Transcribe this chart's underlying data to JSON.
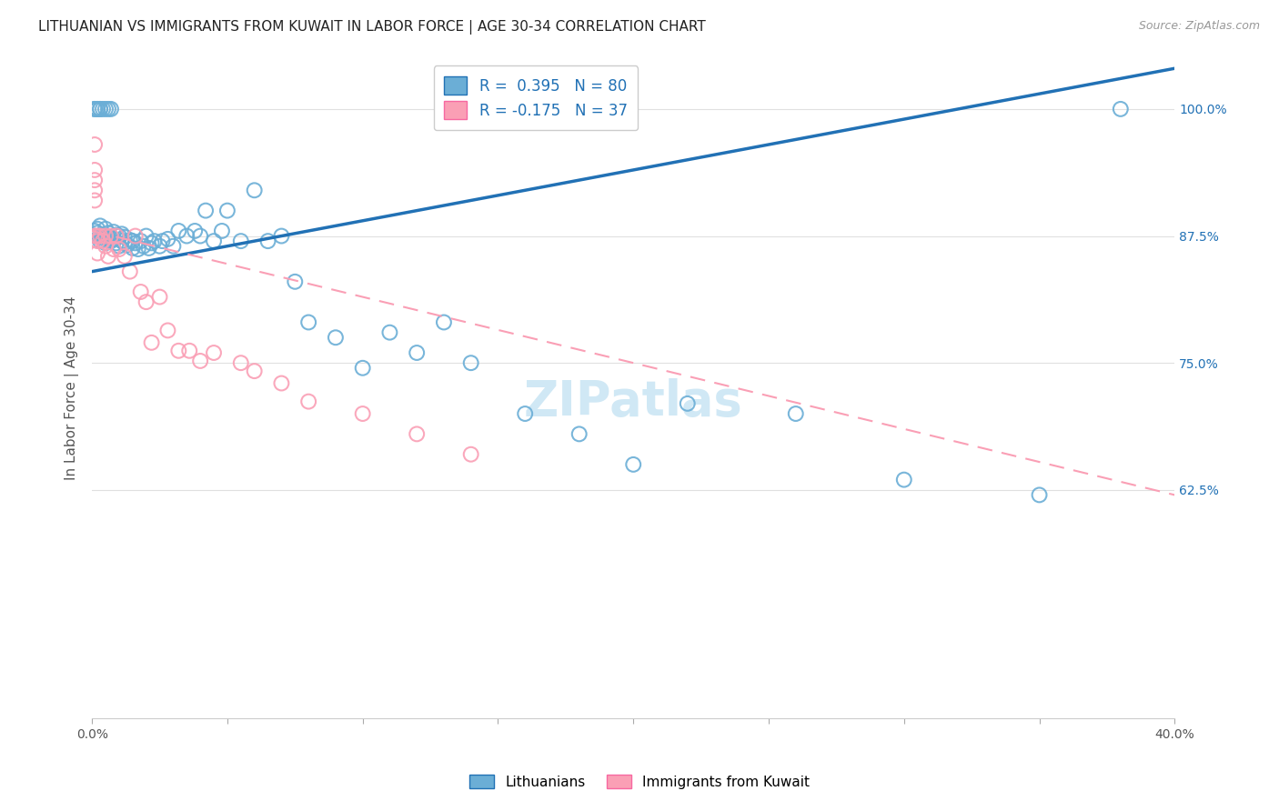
{
  "title": "LITHUANIAN VS IMMIGRANTS FROM KUWAIT IN LABOR FORCE | AGE 30-34 CORRELATION CHART",
  "source": "Source: ZipAtlas.com",
  "ylabel": "In Labor Force | Age 30-34",
  "xlim": [
    0.0,
    0.4
  ],
  "ylim": [
    0.4,
    1.05
  ],
  "yticks": [
    0.625,
    0.75,
    0.875,
    1.0
  ],
  "ytick_labels": [
    "62.5%",
    "75.0%",
    "87.5%",
    "100.0%"
  ],
  "xticks": [
    0.0,
    0.05,
    0.1,
    0.15,
    0.2,
    0.25,
    0.3,
    0.35,
    0.4
  ],
  "xtick_labels": [
    "0.0%",
    "",
    "",
    "",
    "",
    "",
    "",
    "",
    "40.0%"
  ],
  "blue_R": 0.395,
  "blue_N": 80,
  "pink_R": -0.175,
  "pink_N": 37,
  "blue_color": "#6baed6",
  "pink_color": "#fa9fb5",
  "blue_line_color": "#2171b5",
  "pink_line_color": "#f768a1",
  "watermark": "ZIPatlas",
  "legend_label_blue": "Lithuanians",
  "legend_label_pink": "Immigrants from Kuwait",
  "blue_scatter_x": [
    0.001,
    0.001,
    0.002,
    0.002,
    0.003,
    0.003,
    0.003,
    0.004,
    0.004,
    0.005,
    0.005,
    0.005,
    0.006,
    0.006,
    0.007,
    0.007,
    0.008,
    0.008,
    0.009,
    0.009,
    0.01,
    0.01,
    0.011,
    0.011,
    0.012,
    0.012,
    0.013,
    0.014,
    0.015,
    0.015,
    0.016,
    0.017,
    0.018,
    0.019,
    0.02,
    0.021,
    0.022,
    0.023,
    0.025,
    0.026,
    0.028,
    0.03,
    0.032,
    0.035,
    0.038,
    0.04,
    0.042,
    0.045,
    0.048,
    0.05,
    0.055,
    0.06,
    0.065,
    0.07,
    0.075,
    0.08,
    0.09,
    0.1,
    0.11,
    0.12,
    0.13,
    0.14,
    0.16,
    0.18,
    0.2,
    0.22,
    0.26,
    0.3,
    0.35,
    0.001,
    0.001,
    0.002,
    0.002,
    0.003,
    0.003,
    0.004,
    0.005,
    0.006,
    0.007,
    0.38
  ],
  "blue_scatter_y": [
    0.875,
    0.88,
    0.878,
    0.882,
    0.875,
    0.87,
    0.885,
    0.876,
    0.873,
    0.875,
    0.868,
    0.882,
    0.872,
    0.878,
    0.87,
    0.874,
    0.872,
    0.879,
    0.868,
    0.876,
    0.875,
    0.865,
    0.87,
    0.877,
    0.868,
    0.874,
    0.866,
    0.871,
    0.863,
    0.87,
    0.868,
    0.862,
    0.87,
    0.865,
    0.875,
    0.863,
    0.868,
    0.87,
    0.865,
    0.87,
    0.872,
    0.865,
    0.88,
    0.875,
    0.88,
    0.875,
    0.9,
    0.87,
    0.88,
    0.9,
    0.87,
    0.92,
    0.87,
    0.875,
    0.83,
    0.79,
    0.775,
    0.745,
    0.78,
    0.76,
    0.79,
    0.75,
    0.7,
    0.68,
    0.65,
    0.71,
    0.7,
    0.635,
    0.62,
    1.0,
    1.0,
    1.0,
    1.0,
    1.0,
    1.0,
    1.0,
    1.0,
    1.0,
    1.0,
    1.0
  ],
  "pink_scatter_x": [
    0.001,
    0.001,
    0.001,
    0.001,
    0.001,
    0.001,
    0.002,
    0.002,
    0.002,
    0.003,
    0.004,
    0.005,
    0.005,
    0.006,
    0.007,
    0.008,
    0.009,
    0.01,
    0.012,
    0.014,
    0.016,
    0.018,
    0.02,
    0.022,
    0.025,
    0.028,
    0.032,
    0.036,
    0.04,
    0.045,
    0.055,
    0.06,
    0.07,
    0.08,
    0.1,
    0.12,
    0.14
  ],
  "pink_scatter_y": [
    0.875,
    0.965,
    0.94,
    0.93,
    0.92,
    0.91,
    0.875,
    0.87,
    0.858,
    0.875,
    0.87,
    0.875,
    0.865,
    0.855,
    0.875,
    0.862,
    0.875,
    0.862,
    0.855,
    0.84,
    0.875,
    0.82,
    0.81,
    0.77,
    0.815,
    0.782,
    0.762,
    0.762,
    0.752,
    0.76,
    0.75,
    0.742,
    0.73,
    0.712,
    0.7,
    0.68,
    0.66
  ],
  "blue_line_x0": 0.0,
  "blue_line_y0": 0.84,
  "blue_line_x1": 0.4,
  "blue_line_y1": 1.04,
  "pink_line_x0": 0.0,
  "pink_line_y0": 0.88,
  "pink_line_x1": 0.4,
  "pink_line_y1": 0.62,
  "title_fontsize": 11,
  "source_fontsize": 9,
  "axis_label_fontsize": 11,
  "tick_fontsize": 10,
  "watermark_fontsize": 38,
  "watermark_color": "#d0e8f5",
  "background_color": "#ffffff",
  "grid_color": "#e0e0e0"
}
